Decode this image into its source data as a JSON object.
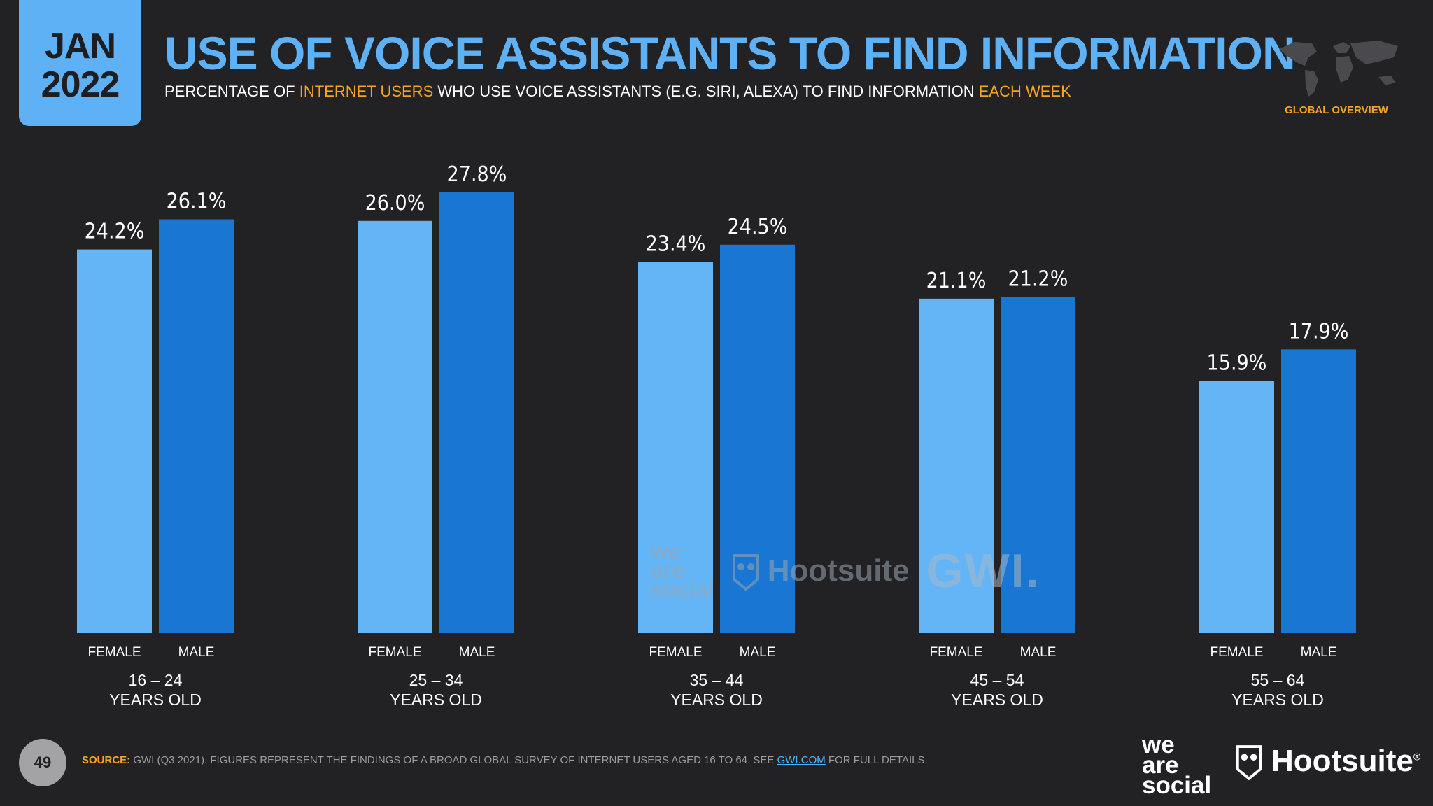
{
  "header": {
    "month": "JAN",
    "year": "2022",
    "title": "USE OF VOICE ASSISTANTS TO FIND INFORMATION",
    "subtitle_parts": [
      "PERCENTAGE OF ",
      "INTERNET USERS",
      " WHO USE VOICE ASSISTANTS (E.G. SIRI, ALEXA) TO FIND INFORMATION ",
      "EACH WEEK"
    ],
    "region": "GLOBAL OVERVIEW"
  },
  "colors": {
    "accent": "#5fb1f5",
    "female": "#64b5f6",
    "male": "#1976d2",
    "highlight": "#f7a323",
    "background": "#222225"
  },
  "chart_data": {
    "type": "bar",
    "categories": [
      "16 – 24",
      "25 – 34",
      "35 – 44",
      "45 – 54",
      "55 – 64"
    ],
    "category_suffix": "YEARS OLD",
    "series": [
      {
        "name": "FEMALE",
        "values": [
          24.2,
          26.0,
          23.4,
          21.1,
          15.9
        ],
        "labels": [
          "24.2%",
          "26.0%",
          "23.4%",
          "21.1%",
          "15.9%"
        ]
      },
      {
        "name": "MALE",
        "values": [
          26.1,
          27.8,
          24.5,
          21.2,
          17.9
        ],
        "labels": [
          "26.1%",
          "27.8%",
          "24.5%",
          "21.2%",
          "17.9%"
        ]
      }
    ],
    "unit": "%",
    "ylim": [
      0,
      27.8
    ],
    "grid": false
  },
  "watermark": {
    "weare": [
      "we",
      "are",
      "social"
    ],
    "hootsuite": "Hootsuite",
    "gwi": "GWI."
  },
  "footer": {
    "page_number": "49",
    "source_label": "SOURCE:",
    "source_text": " GWI (Q3 2021). FIGURES REPRESENT THE FINDINGS OF A BROAD GLOBAL SURVEY OF INTERNET USERS AGED 16 TO 64. SEE ",
    "source_link": "GWI.COM",
    "source_tail": " FOR FULL DETAILS.",
    "logo_weare": [
      "we",
      "are",
      "social"
    ],
    "logo_hootsuite": "Hootsuite",
    "logo_reg": "®"
  }
}
